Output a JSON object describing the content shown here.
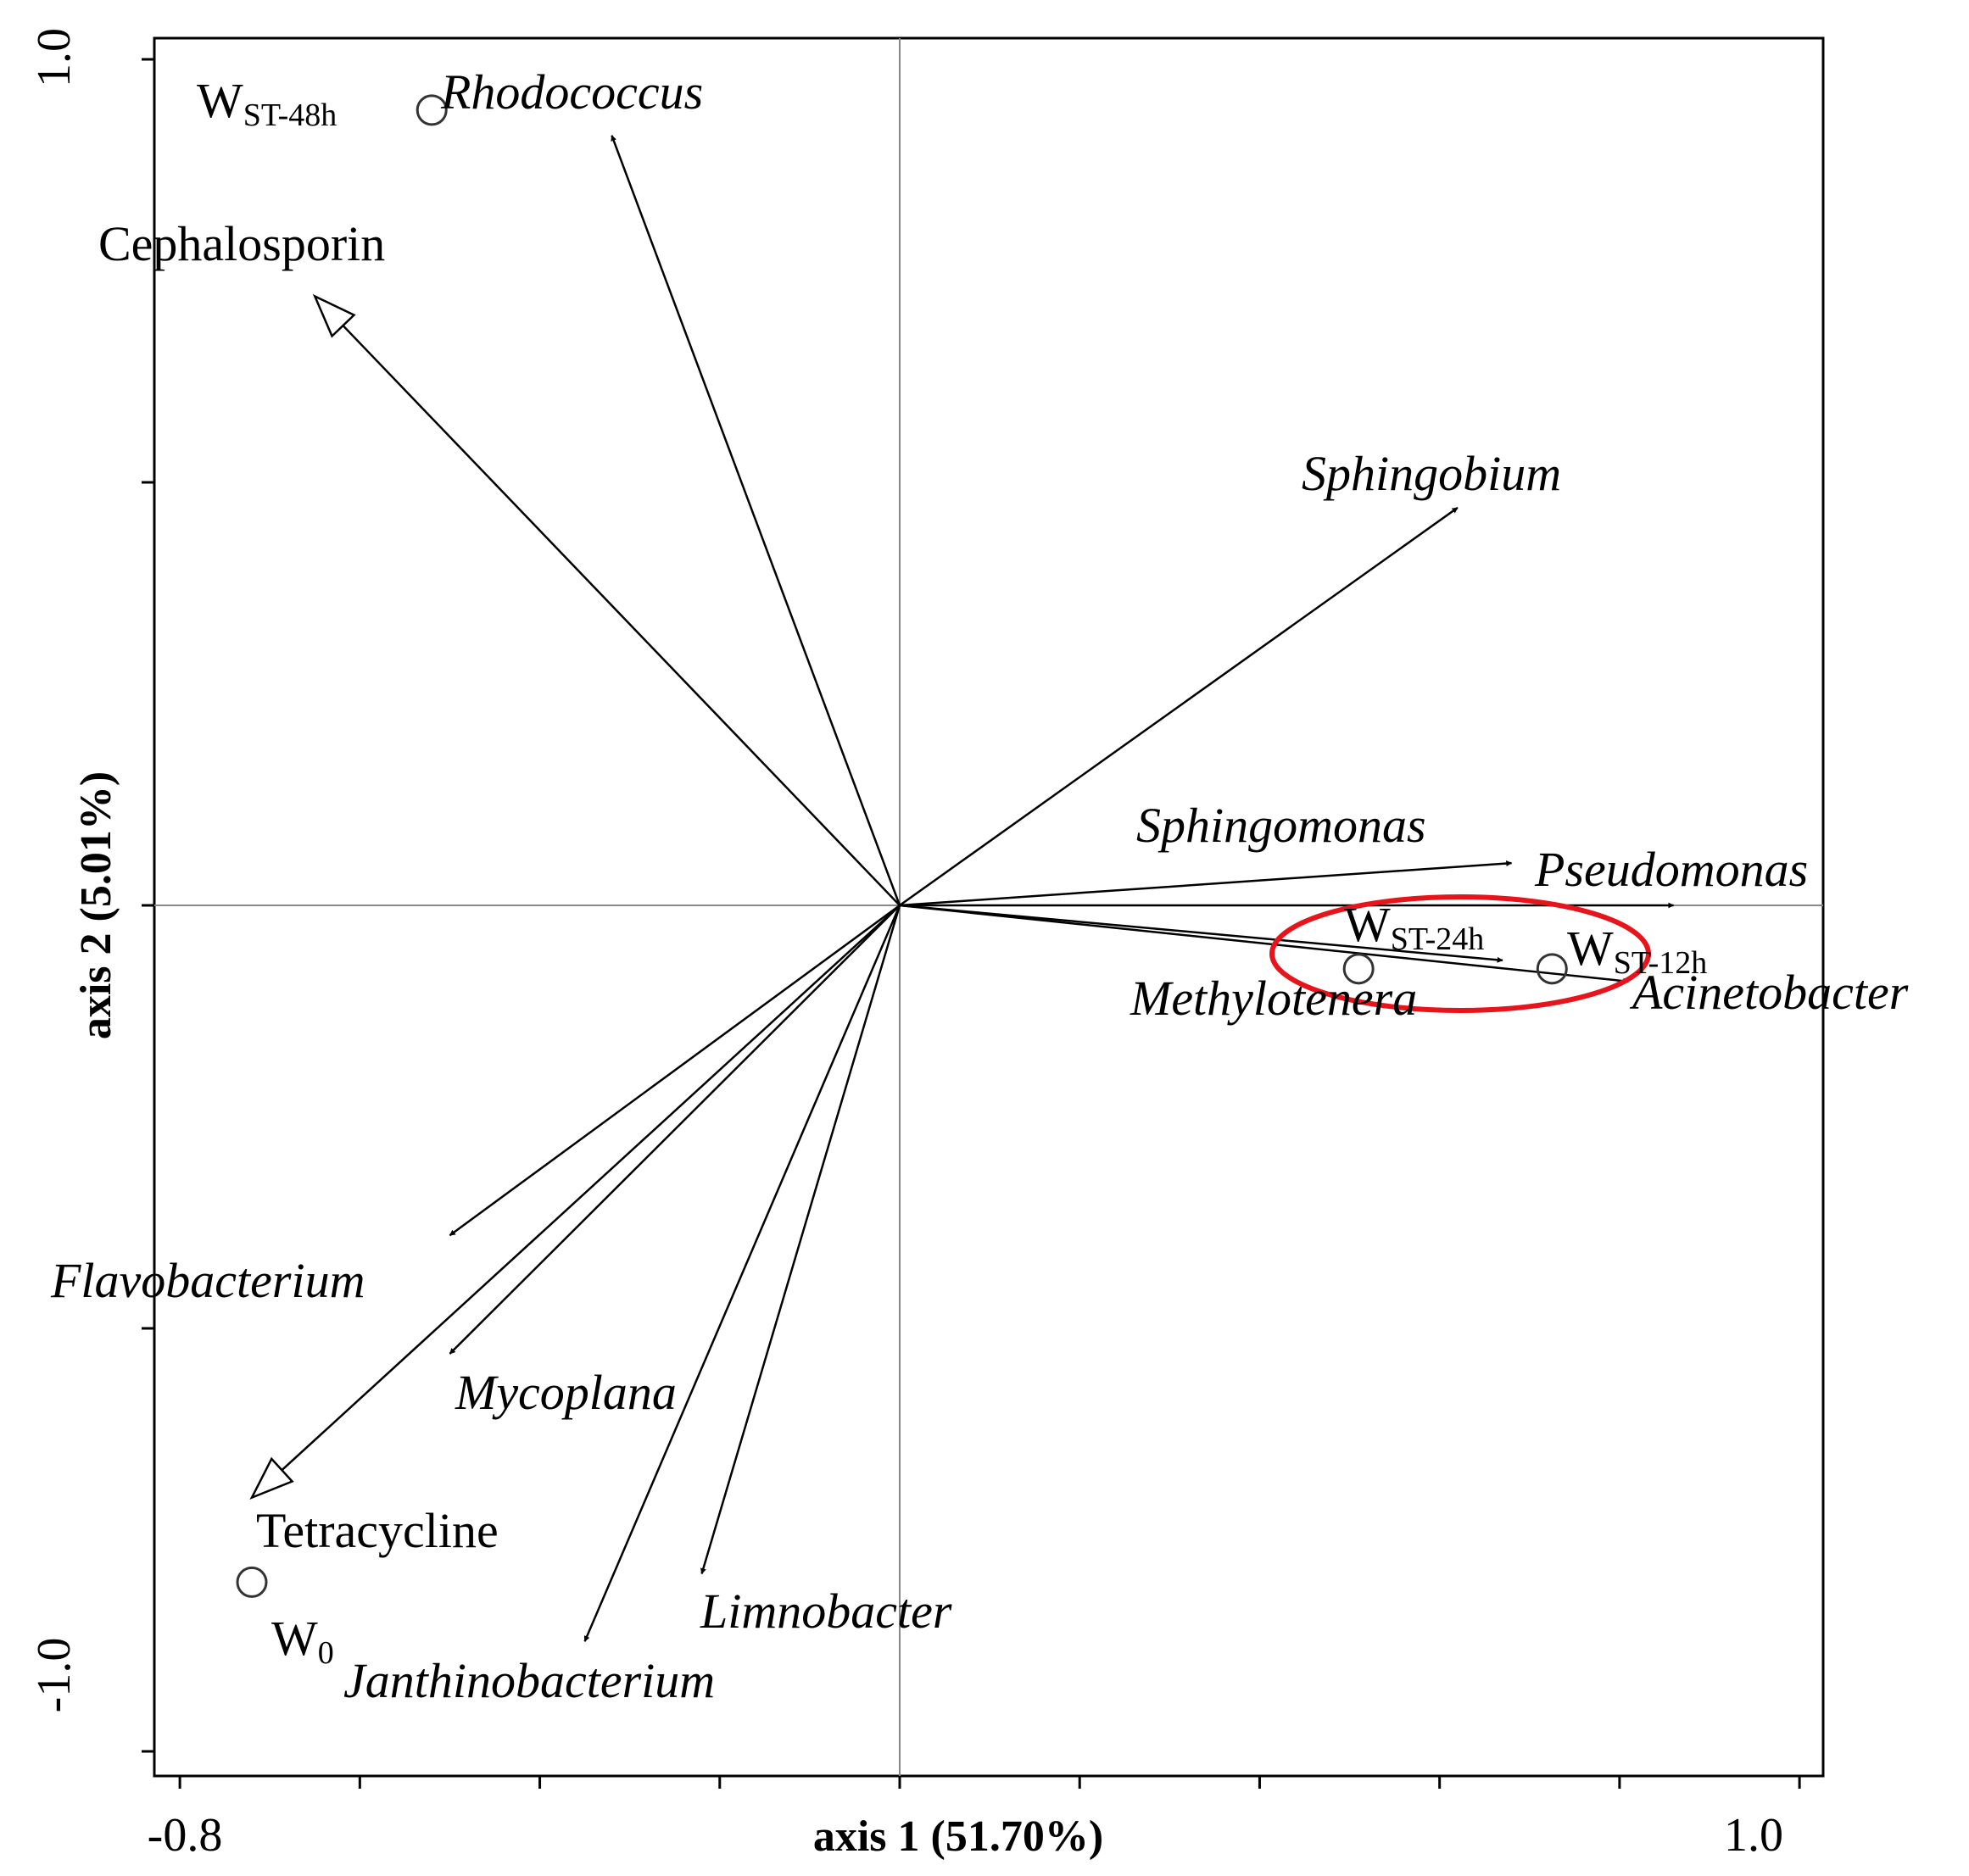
{
  "chart_data": {
    "type": "scatter",
    "subtype": "rda-biplot",
    "title": "",
    "xlabel": "axis 1 (51.70%)",
    "ylabel": "axis 2 (5.01%)",
    "xlim": [
      -0.8,
      1.0
    ],
    "ylim": [
      -1.0,
      1.0
    ],
    "x_tick_labels": [
      "-0.8",
      "1.0"
    ],
    "y_tick_labels": [
      "1.0",
      "-1.0"
    ],
    "x_minor_ticks": [
      -0.8,
      -0.6,
      -0.4,
      -0.2,
      0.0,
      0.2,
      0.4,
      0.6,
      0.8,
      1.0
    ],
    "y_minor_ticks": [
      -1.0,
      -0.5,
      0.0,
      0.5,
      1.0
    ],
    "zero_lines": true,
    "species_arrows": [
      {
        "name": "Rhodococcus",
        "x": -0.32,
        "y": 0.91
      },
      {
        "name": "Sphingobium",
        "x": 0.62,
        "y": 0.47
      },
      {
        "name": "Sphingomonas",
        "x": 0.68,
        "y": 0.05
      },
      {
        "name": "Pseudomonas",
        "x": 0.86,
        "y": 0.0
      },
      {
        "name": "Methylotenera",
        "x": 0.67,
        "y": -0.065
      },
      {
        "name": "Acinetobacter",
        "x": 0.81,
        "y": -0.09
      },
      {
        "name": "Flavobacterium",
        "x": -0.5,
        "y": -0.39
      },
      {
        "name": "Mycoplana",
        "x": -0.5,
        "y": -0.53
      },
      {
        "name": "Limnobacter",
        "x": -0.22,
        "y": -0.79
      },
      {
        "name": "Janthinobacterium",
        "x": -0.35,
        "y": -0.87
      }
    ],
    "environmental_arrows": [
      {
        "name": "Cephalosporin",
        "x": -0.65,
        "y": 0.72
      },
      {
        "name": "Tetracycline",
        "x": -0.72,
        "y": -0.7
      }
    ],
    "samples": [
      {
        "name": "W",
        "subscript": "ST-48h",
        "x": -0.52,
        "y": 0.94
      },
      {
        "name": "W",
        "subscript": "ST-24h",
        "x": 0.51,
        "y": -0.075
      },
      {
        "name": "W",
        "subscript": "ST-12h",
        "x": 0.725,
        "y": -0.075
      },
      {
        "name": "W",
        "subscript": "0",
        "x": -0.72,
        "y": -0.8
      }
    ],
    "highlight": {
      "shape": "ellipse",
      "color": "#e8141c",
      "encloses": [
        "WST-24h",
        "WST-12h"
      ]
    }
  }
}
